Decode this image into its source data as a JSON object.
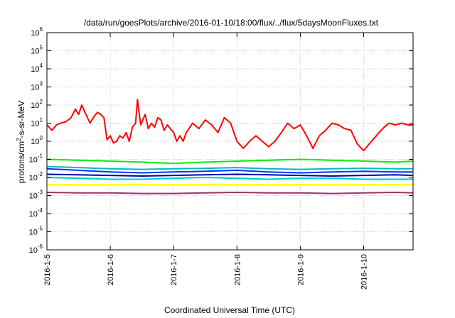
{
  "chart_data": {
    "type": "line",
    "title": "/data/run/goesPlots/archive/2016-01-10/18:00/flux/../flux/5daysMoonFluxes.txt",
    "xlabel": "Coordinated Universal Time (UTC)",
    "ylabel_parts": [
      "protons/cm",
      "2",
      "-s-sr-MeV"
    ],
    "yscale": "log",
    "ylim": [
      1e-06,
      1000000.0
    ],
    "xlim": [
      0,
      5.78
    ],
    "grid": true,
    "x_tick_labels": [
      "2016-1-5",
      "2016-1-6",
      "2016-1-7",
      "2016-1-8",
      "2016-1-9",
      "2016-1-10"
    ],
    "y_ticks": [
      {
        "base": "10",
        "exp": "6"
      },
      {
        "base": "10",
        "exp": "5"
      },
      {
        "base": "10",
        "exp": "4"
      },
      {
        "base": "10",
        "exp": "3"
      },
      {
        "base": "10",
        "exp": "2"
      },
      {
        "base": "10",
        "exp": "1"
      },
      {
        "base": "10",
        "exp": "0"
      },
      {
        "base": "10",
        "exp": "-1"
      },
      {
        "base": "10",
        "exp": "-2"
      },
      {
        "base": "10",
        "exp": "-3"
      },
      {
        "base": "10",
        "exp": "-4"
      },
      {
        "base": "10",
        "exp": "-5"
      },
      {
        "base": "10",
        "exp": "-6"
      }
    ],
    "series": [
      {
        "color": "#ff0000",
        "x": [
          0,
          0.08,
          0.15,
          0.22,
          0.3,
          0.38,
          0.45,
          0.5,
          0.55,
          0.6,
          0.68,
          0.75,
          0.8,
          0.85,
          0.9,
          0.95,
          1.0,
          1.05,
          1.1,
          1.15,
          1.2,
          1.25,
          1.3,
          1.35,
          1.4,
          1.43,
          1.48,
          1.55,
          1.6,
          1.65,
          1.7,
          1.75,
          1.8,
          1.85,
          1.9,
          1.95,
          2.0,
          2.05,
          2.1,
          2.15,
          2.2,
          2.3,
          2.4,
          2.5,
          2.6,
          2.7,
          2.8,
          2.9,
          3.0,
          3.1,
          3.2,
          3.3,
          3.4,
          3.5,
          3.6,
          3.7,
          3.8,
          3.9,
          4.0,
          4.1,
          4.2,
          4.3,
          4.4,
          4.5,
          4.6,
          4.7,
          4.8,
          4.9,
          5.0,
          5.1,
          5.2,
          5.3,
          5.4,
          5.5,
          5.6,
          5.7,
          5.78
        ],
        "y": [
          8,
          4,
          8,
          10,
          12,
          20,
          60,
          30,
          100,
          40,
          10,
          25,
          40,
          30,
          20,
          1.2,
          2,
          0.8,
          1,
          2,
          1.5,
          3,
          1,
          6,
          10,
          200,
          8,
          30,
          5,
          10,
          6,
          20,
          15,
          4,
          8,
          5,
          3,
          1,
          2,
          1,
          3,
          10,
          5,
          15,
          8,
          3,
          20,
          10,
          1,
          0.4,
          1,
          2,
          1,
          0.5,
          1,
          3,
          10,
          5,
          8,
          2,
          0.4,
          2,
          4,
          10,
          8,
          5,
          4,
          0.7,
          0.3,
          0.8,
          2,
          5,
          10,
          8,
          10,
          8,
          8
        ]
      },
      {
        "color": "#00ee00",
        "x": [
          0,
          0.5,
          1.0,
          1.5,
          2.0,
          2.5,
          3.0,
          3.5,
          4.0,
          4.5,
          5.0,
          5.5,
          5.78
        ],
        "y": [
          0.1,
          0.09,
          0.08,
          0.07,
          0.06,
          0.07,
          0.08,
          0.09,
          0.1,
          0.09,
          0.08,
          0.07,
          0.08
        ]
      },
      {
        "color": "#00bbbb",
        "x": [
          0,
          0.5,
          1.0,
          1.5,
          2.0,
          2.5,
          3.0,
          3.5,
          4.0,
          4.5,
          5.0,
          5.5,
          5.78
        ],
        "y": [
          0.04,
          0.035,
          0.03,
          0.028,
          0.03,
          0.032,
          0.035,
          0.03,
          0.028,
          0.03,
          0.032,
          0.03,
          0.03
        ]
      },
      {
        "color": "#0033ff",
        "x": [
          0,
          0.5,
          1.0,
          1.5,
          2.0,
          2.5,
          3.0,
          3.5,
          4.0,
          4.5,
          5.0,
          5.5,
          5.78
        ],
        "y": [
          0.03,
          0.025,
          0.02,
          0.018,
          0.02,
          0.022,
          0.025,
          0.02,
          0.018,
          0.02,
          0.022,
          0.02,
          0.02
        ]
      },
      {
        "color": "#0000aa",
        "x": [
          0,
          0.5,
          1.0,
          1.5,
          2.0,
          2.5,
          3.0,
          3.5,
          4.0,
          4.5,
          5.0,
          5.5,
          5.78
        ],
        "y": [
          0.015,
          0.014,
          0.013,
          0.012,
          0.013,
          0.014,
          0.015,
          0.014,
          0.013,
          0.012,
          0.013,
          0.014,
          0.013
        ]
      },
      {
        "color": "#00cccc",
        "x": [
          0,
          0.5,
          1.0,
          1.5,
          2.0,
          2.5,
          3.0,
          3.5,
          4.0,
          4.5,
          5.0,
          5.5,
          5.78
        ],
        "y": [
          0.01,
          0.009,
          0.008,
          0.008,
          0.009,
          0.01,
          0.009,
          0.008,
          0.009,
          0.009,
          0.008,
          0.008,
          0.008
        ]
      },
      {
        "color": "#ffff00",
        "x": [
          0,
          1,
          2,
          3,
          4,
          5,
          5.78
        ],
        "y": [
          0.004,
          0.004,
          0.004,
          0.004,
          0.004,
          0.004,
          0.004
        ]
      },
      {
        "color": "#993366",
        "x": [
          0,
          0.5,
          1.0,
          1.5,
          2.0,
          2.5,
          3.0,
          3.5,
          4.0,
          4.5,
          5.0,
          5.5,
          5.78
        ],
        "y": [
          0.0015,
          0.0014,
          0.0014,
          0.0013,
          0.0013,
          0.0014,
          0.0015,
          0.0014,
          0.0014,
          0.0013,
          0.0014,
          0.0015,
          0.0014
        ]
      }
    ]
  }
}
